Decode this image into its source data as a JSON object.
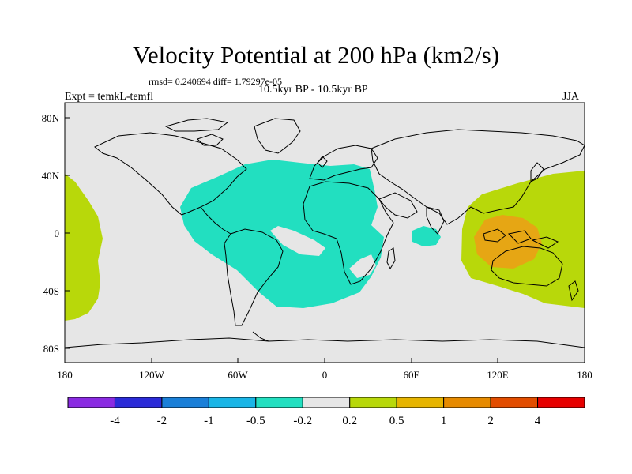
{
  "title": "Velocity Potential at 200 hPa (km2/s)",
  "stats": "rmsd= 0.240694  diff= 1.79297e-05",
  "expt": "Expt = temkL-temfl",
  "period": "10.5kyr BP - 10.5kyr BP",
  "season": "JJA",
  "lat_labels": [
    "80N",
    "40N",
    "0",
    "40S",
    "80S"
  ],
  "lon_labels": [
    "180",
    "120W",
    "60W",
    "0",
    "60E",
    "120E",
    "180"
  ],
  "colorbar": {
    "labels": [
      "-4",
      "-2",
      "-1",
      "-0.5",
      "-0.2",
      "0.2",
      "0.5",
      "1",
      "2",
      "4"
    ],
    "colors": [
      "#8a2be2",
      "#2b2bd8",
      "#1a7fd8",
      "#19b5e6",
      "#22dfc0",
      "#e6e6e6",
      "#b8d80a",
      "#e6b400",
      "#e68a00",
      "#e24d00",
      "#e60000"
    ]
  },
  "colors": {
    "land_outline": "#000000",
    "background": "#e6e6e6",
    "negative_region": "#22dfc0",
    "positive_region": "#b8d80a",
    "positive_core": "#e6a614"
  }
}
